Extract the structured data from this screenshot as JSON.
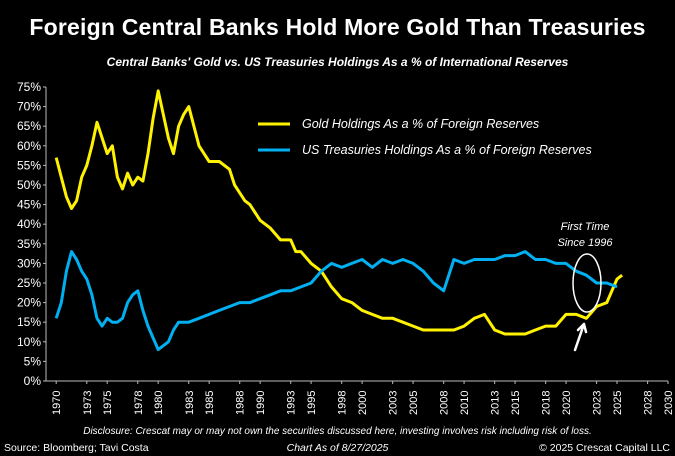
{
  "header": {
    "title": "Foreign Central Banks Hold More Gold Than Treasuries",
    "subtitle": "Central Banks' Gold vs. US Treasuries Holdings As a % of International Reserves"
  },
  "footer": {
    "disclosure": "Disclosure: Crescat may or may not own the securities discussed here, investing involves risk including risk of loss.",
    "source": "Source: Bloomberg; Tavi Costa",
    "as_of": "Chart As of 8/27/2025",
    "copyright": "© 2025 Crescat Capital LLC"
  },
  "annotation": {
    "line1": "First Time",
    "line2": "Since 1996"
  },
  "colors": {
    "gold": "#FFF200",
    "treasuries": "#00B0F0",
    "background": "#000000",
    "text": "#FFFFFF"
  },
  "chart_data": {
    "type": "line",
    "title": "Foreign Central Banks Hold More Gold Than Treasuries",
    "subtitle": "Central Banks' Gold vs. US Treasuries Holdings As a % of International Reserves",
    "xlim": [
      1969,
      2030
    ],
    "ylim": [
      0,
      75
    ],
    "y_ticks": [
      0,
      5,
      10,
      15,
      20,
      25,
      30,
      35,
      40,
      45,
      50,
      55,
      60,
      65,
      70,
      75
    ],
    "y_tick_labels": [
      "0%",
      "5%",
      "10%",
      "15%",
      "20%",
      "25%",
      "30%",
      "35%",
      "40%",
      "45%",
      "50%",
      "55%",
      "60%",
      "65%",
      "70%",
      "75%"
    ],
    "x_ticks": [
      1970,
      1973,
      1975,
      1978,
      1980,
      1983,
      1985,
      1988,
      1990,
      1993,
      1995,
      1998,
      2000,
      2003,
      2005,
      2008,
      2010,
      2013,
      2015,
      2018,
      2020,
      2023,
      2025,
      2028,
      2030
    ],
    "grid": false,
    "legend_position": "top-right",
    "series": [
      {
        "name": "Gold Holdings As a % of Foreign Reserves",
        "color": "#FFF200",
        "points": [
          [
            1970,
            57
          ],
          [
            1970.5,
            52
          ],
          [
            1971,
            47
          ],
          [
            1971.5,
            44
          ],
          [
            1972,
            46
          ],
          [
            1972.5,
            52
          ],
          [
            1973,
            55
          ],
          [
            1973.5,
            60
          ],
          [
            1974,
            66
          ],
          [
            1974.5,
            62
          ],
          [
            1975,
            58
          ],
          [
            1975.5,
            60
          ],
          [
            1976,
            52
          ],
          [
            1976.5,
            49
          ],
          [
            1977,
            53
          ],
          [
            1977.5,
            50
          ],
          [
            1978,
            52
          ],
          [
            1978.5,
            51
          ],
          [
            1979,
            58
          ],
          [
            1979.5,
            67
          ],
          [
            1980,
            74
          ],
          [
            1980.5,
            68
          ],
          [
            1981,
            62
          ],
          [
            1981.5,
            58
          ],
          [
            1982,
            65
          ],
          [
            1982.5,
            68
          ],
          [
            1983,
            70
          ],
          [
            1983.5,
            65
          ],
          [
            1984,
            60
          ],
          [
            1984.5,
            58
          ],
          [
            1985,
            56
          ],
          [
            1986,
            56
          ],
          [
            1987,
            54
          ],
          [
            1987.5,
            50
          ],
          [
            1988,
            48
          ],
          [
            1988.5,
            46
          ],
          [
            1989,
            45
          ],
          [
            1990,
            41
          ],
          [
            1991,
            39
          ],
          [
            1992,
            36
          ],
          [
            1993,
            36
          ],
          [
            1993.5,
            33
          ],
          [
            1994,
            33
          ],
          [
            1995,
            30
          ],
          [
            1996,
            28
          ],
          [
            1997,
            24
          ],
          [
            1998,
            21
          ],
          [
            1999,
            20
          ],
          [
            2000,
            18
          ],
          [
            2001,
            17
          ],
          [
            2002,
            16
          ],
          [
            2003,
            16
          ],
          [
            2004,
            15
          ],
          [
            2005,
            14
          ],
          [
            2006,
            13
          ],
          [
            2007,
            13
          ],
          [
            2008,
            13
          ],
          [
            2009,
            13
          ],
          [
            2010,
            14
          ],
          [
            2011,
            16
          ],
          [
            2012,
            17
          ],
          [
            2013,
            13
          ],
          [
            2014,
            12
          ],
          [
            2015,
            12
          ],
          [
            2016,
            12
          ],
          [
            2017,
            13
          ],
          [
            2018,
            14
          ],
          [
            2019,
            14
          ],
          [
            2020,
            17
          ],
          [
            2021,
            17
          ],
          [
            2022,
            16
          ],
          [
            2023,
            19
          ],
          [
            2024,
            20
          ],
          [
            2024.5,
            23
          ],
          [
            2025,
            26
          ],
          [
            2025.5,
            27
          ]
        ]
      },
      {
        "name": "US Treasuries Holdings As a % of Foreign Reserves",
        "color": "#00B0F0",
        "points": [
          [
            1970,
            16
          ],
          [
            1970.5,
            20
          ],
          [
            1971,
            28
          ],
          [
            1971.5,
            33
          ],
          [
            1972,
            31
          ],
          [
            1972.5,
            28
          ],
          [
            1973,
            26
          ],
          [
            1973.5,
            22
          ],
          [
            1974,
            16
          ],
          [
            1974.5,
            14
          ],
          [
            1975,
            16
          ],
          [
            1975.5,
            15
          ],
          [
            1976,
            15
          ],
          [
            1976.5,
            16
          ],
          [
            1977,
            20
          ],
          [
            1977.5,
            22
          ],
          [
            1978,
            23
          ],
          [
            1978.5,
            18
          ],
          [
            1979,
            14
          ],
          [
            1979.5,
            11
          ],
          [
            1980,
            8
          ],
          [
            1980.5,
            9
          ],
          [
            1981,
            10
          ],
          [
            1981.5,
            13
          ],
          [
            1982,
            15
          ],
          [
            1983,
            15
          ],
          [
            1984,
            16
          ],
          [
            1985,
            17
          ],
          [
            1986,
            18
          ],
          [
            1987,
            19
          ],
          [
            1988,
            20
          ],
          [
            1989,
            20
          ],
          [
            1990,
            21
          ],
          [
            1991,
            22
          ],
          [
            1992,
            23
          ],
          [
            1993,
            23
          ],
          [
            1994,
            24
          ],
          [
            1995,
            25
          ],
          [
            1996,
            28
          ],
          [
            1997,
            30
          ],
          [
            1998,
            29
          ],
          [
            1999,
            30
          ],
          [
            2000,
            31
          ],
          [
            2001,
            29
          ],
          [
            2002,
            31
          ],
          [
            2003,
            30
          ],
          [
            2004,
            31
          ],
          [
            2005,
            30
          ],
          [
            2006,
            28
          ],
          [
            2007,
            25
          ],
          [
            2008,
            23
          ],
          [
            2009,
            31
          ],
          [
            2010,
            30
          ],
          [
            2011,
            31
          ],
          [
            2012,
            31
          ],
          [
            2013,
            31
          ],
          [
            2014,
            32
          ],
          [
            2015,
            32
          ],
          [
            2016,
            33
          ],
          [
            2017,
            31
          ],
          [
            2018,
            31
          ],
          [
            2019,
            30
          ],
          [
            2020,
            30
          ],
          [
            2021,
            28
          ],
          [
            2022,
            27
          ],
          [
            2023,
            25
          ],
          [
            2024,
            25
          ],
          [
            2025,
            24
          ]
        ]
      }
    ]
  }
}
